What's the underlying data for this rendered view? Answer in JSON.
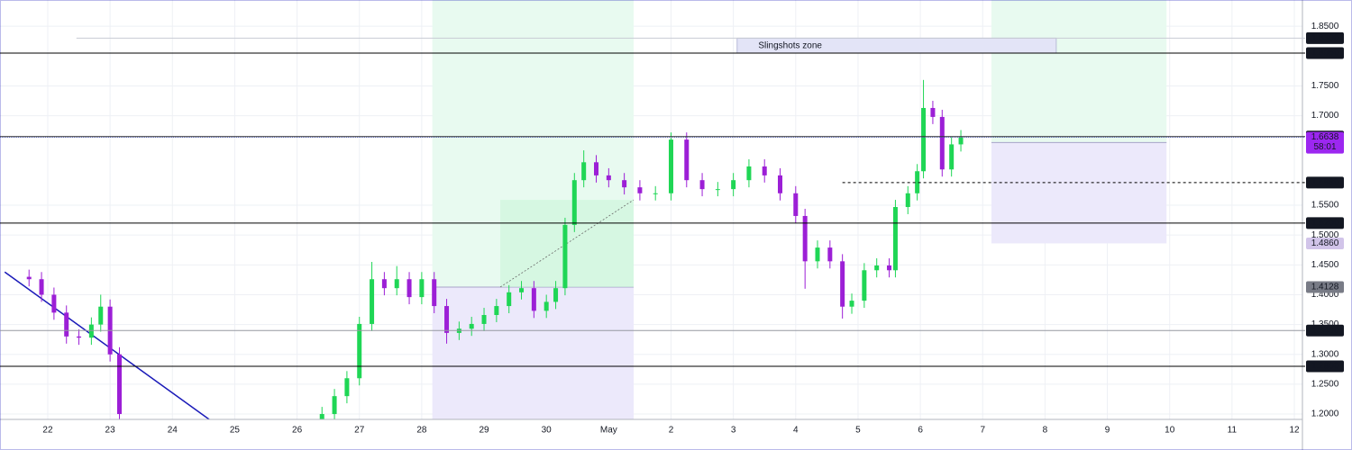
{
  "chart_data": {
    "type": "candlestick",
    "x": [
      21.7,
      21.9,
      22.1,
      22.3,
      22.5,
      22.7,
      22.85,
      23.0,
      23.15,
      26.4,
      26.6,
      26.8,
      27.0,
      27.2,
      27.4,
      27.6,
      27.8,
      28.0,
      28.2,
      28.4,
      28.6,
      28.8,
      29.0,
      29.2,
      29.4,
      29.6,
      29.8,
      30.0,
      30.15,
      30.3,
      30.45,
      30.6,
      30.8,
      31.0,
      31.25,
      31.5,
      31.75,
      32.0,
      32.25,
      32.5,
      32.75,
      33.0,
      33.25,
      33.5,
      33.75,
      34.0,
      34.15,
      34.35,
      34.55,
      34.75,
      34.9,
      35.1,
      35.3,
      35.5,
      35.6,
      35.8,
      35.95,
      36.05,
      36.2,
      36.35,
      36.5,
      36.65
    ],
    "open": [
      1.43,
      1.426,
      1.4,
      1.37,
      1.33,
      1.328,
      1.35,
      1.38,
      1.3,
      1.19,
      1.2,
      1.23,
      1.26,
      1.351,
      1.426,
      1.411,
      1.426,
      1.396,
      1.426,
      1.381,
      1.336,
      1.343,
      1.351,
      1.366,
      1.381,
      1.404,
      1.411,
      1.373,
      1.388,
      1.411,
      1.517,
      1.592,
      1.622,
      1.6,
      1.592,
      1.58,
      1.57,
      1.57,
      1.66,
      1.592,
      1.577,
      1.577,
      1.592,
      1.615,
      1.6,
      1.57,
      1.532,
      1.456,
      1.479,
      1.456,
      1.38,
      1.39,
      1.441,
      1.449,
      1.441,
      1.547,
      1.57,
      1.607,
      1.713,
      1.698,
      1.61,
      1.652
    ],
    "high": [
      1.442,
      1.438,
      1.412,
      1.382,
      1.342,
      1.362,
      1.4,
      1.392,
      1.312,
      1.212,
      1.242,
      1.272,
      1.363,
      1.455,
      1.438,
      1.448,
      1.438,
      1.438,
      1.438,
      1.393,
      1.355,
      1.363,
      1.378,
      1.393,
      1.416,
      1.423,
      1.423,
      1.4,
      1.423,
      1.529,
      1.604,
      1.642,
      1.634,
      1.612,
      1.604,
      1.592,
      1.582,
      1.672,
      1.672,
      1.604,
      1.589,
      1.604,
      1.627,
      1.627,
      1.612,
      1.582,
      1.544,
      1.491,
      1.491,
      1.468,
      1.402,
      1.453,
      1.461,
      1.461,
      1.559,
      1.582,
      1.619,
      1.76,
      1.725,
      1.71,
      1.664,
      1.676
    ],
    "low": [
      1.414,
      1.388,
      1.358,
      1.318,
      1.316,
      1.316,
      1.338,
      1.288,
      1.188,
      1.185,
      1.188,
      1.218,
      1.248,
      1.339,
      1.399,
      1.399,
      1.384,
      1.384,
      1.369,
      1.318,
      1.324,
      1.331,
      1.339,
      1.354,
      1.369,
      1.392,
      1.361,
      1.361,
      1.376,
      1.399,
      1.505,
      1.58,
      1.588,
      1.58,
      1.568,
      1.558,
      1.558,
      1.558,
      1.58,
      1.565,
      1.565,
      1.565,
      1.58,
      1.588,
      1.558,
      1.52,
      1.41,
      1.444,
      1.444,
      1.36,
      1.368,
      1.378,
      1.429,
      1.429,
      1.429,
      1.535,
      1.558,
      1.595,
      1.686,
      1.598,
      1.598,
      1.64
    ],
    "close": [
      1.426,
      1.4,
      1.37,
      1.33,
      1.328,
      1.35,
      1.38,
      1.3,
      1.2,
      1.2,
      1.23,
      1.26,
      1.351,
      1.426,
      1.411,
      1.426,
      1.396,
      1.426,
      1.381,
      1.336,
      1.343,
      1.351,
      1.366,
      1.381,
      1.404,
      1.411,
      1.373,
      1.388,
      1.411,
      1.517,
      1.592,
      1.622,
      1.6,
      1.592,
      1.58,
      1.57,
      1.57,
      1.66,
      1.592,
      1.577,
      1.577,
      1.592,
      1.615,
      1.6,
      1.57,
      1.532,
      1.456,
      1.479,
      1.456,
      1.38,
      1.39,
      1.441,
      1.449,
      1.441,
      1.547,
      1.57,
      1.607,
      1.713,
      1.698,
      1.61,
      1.652,
      1.6638
    ],
    "up_color": "#1fd655",
    "down_color": "#9c1fd6",
    "xlim": [
      21.234,
      42.13
    ],
    "ylim": [
      1.191,
      1.894
    ],
    "xticks": [
      22,
      23,
      24,
      25,
      26,
      27,
      28,
      29,
      30,
      {
        "value": 31,
        "label": "May"
      },
      {
        "value": 32,
        "label": "2"
      },
      {
        "value": 33,
        "label": "3"
      },
      {
        "value": 34,
        "label": "4"
      },
      {
        "value": 35,
        "label": "5"
      },
      {
        "value": 36,
        "label": "6"
      },
      {
        "value": 37,
        "label": "7"
      },
      {
        "value": 38,
        "label": "8"
      },
      {
        "value": 39,
        "label": "9"
      },
      {
        "value": 40,
        "label": "10"
      },
      {
        "value": 41,
        "label": "11"
      },
      {
        "value": 42,
        "label": "12"
      }
    ],
    "yticks": [
      {
        "value": 1.2,
        "label": "1.2000"
      },
      {
        "value": 1.25,
        "label": "1.2500"
      },
      {
        "value": 1.3,
        "label": "1.3000"
      },
      {
        "value": 1.35,
        "label": "1.3500"
      },
      {
        "value": 1.4,
        "label": "1.4000"
      },
      {
        "value": 1.45,
        "label": "1.4500"
      },
      {
        "value": 1.5,
        "label": "1.5000"
      },
      {
        "value": 1.55,
        "label": "1.5500"
      },
      {
        "value": 1.7,
        "label": "1.7000"
      },
      {
        "value": 1.75,
        "label": "1.7500"
      },
      {
        "value": 1.85,
        "label": "1.8500"
      }
    ],
    "grid": true,
    "levels": [
      {
        "value": 1.83,
        "label": "1.8300",
        "label_bg": "#131722",
        "line_color": "#c8cbd4",
        "x0": 22.46
      },
      {
        "value": 1.805,
        "label": "1.8050",
        "label_bg": "#131722",
        "line_color": "#000000"
      },
      {
        "value": 1.665,
        "label": "1.6650",
        "label_bg": "#131722",
        "line_color": "#333333"
      },
      {
        "value": 1.655,
        "label": "1.6550",
        "label_bg": "#787b86"
      },
      {
        "value": 1.588,
        "label": "1.5880",
        "label_bg": "#131722",
        "line_color": "#000000",
        "x0": 34.75,
        "dashed": true
      },
      {
        "value": 1.52,
        "label": "1.5200",
        "label_bg": "#131722",
        "line_color": "#000000"
      },
      {
        "value": 1.486,
        "label": "1.4860",
        "label_bg": "#d1c4e9"
      },
      {
        "value": 1.4128,
        "label": "1.4128",
        "label_bg": "#787b86"
      },
      {
        "value": 1.34,
        "label": "1.3400",
        "label_bg": "#131722",
        "line_color": "#9598a1"
      },
      {
        "value": 1.28,
        "label": "1.2800",
        "label_bg": "#131722",
        "line_color": "#000000"
      }
    ],
    "current": {
      "value": 1.6638,
      "label": "1.6638",
      "countdown": "58:01",
      "color": "#9c27f0",
      "line_color": "#3f51b5"
    },
    "positions": [
      {
        "x": [
          28.17,
          31.4
        ],
        "entry": 1.4128,
        "inner_x0": 29.26,
        "inner_top": 1.559
      },
      {
        "x": [
          37.14,
          39.95
        ],
        "entry": 1.655,
        "stop": 1.486
      }
    ],
    "zone": {
      "text": "Slingshots zone",
      "x": [
        33.06,
        38.18
      ],
      "y": [
        1.805,
        1.83
      ],
      "text_color": "#e53935"
    },
    "trend_line": {
      "x": [
        21.31,
        24.59
      ],
      "y": [
        1.438,
        1.191
      ],
      "color": "#1a1ab8"
    }
  }
}
